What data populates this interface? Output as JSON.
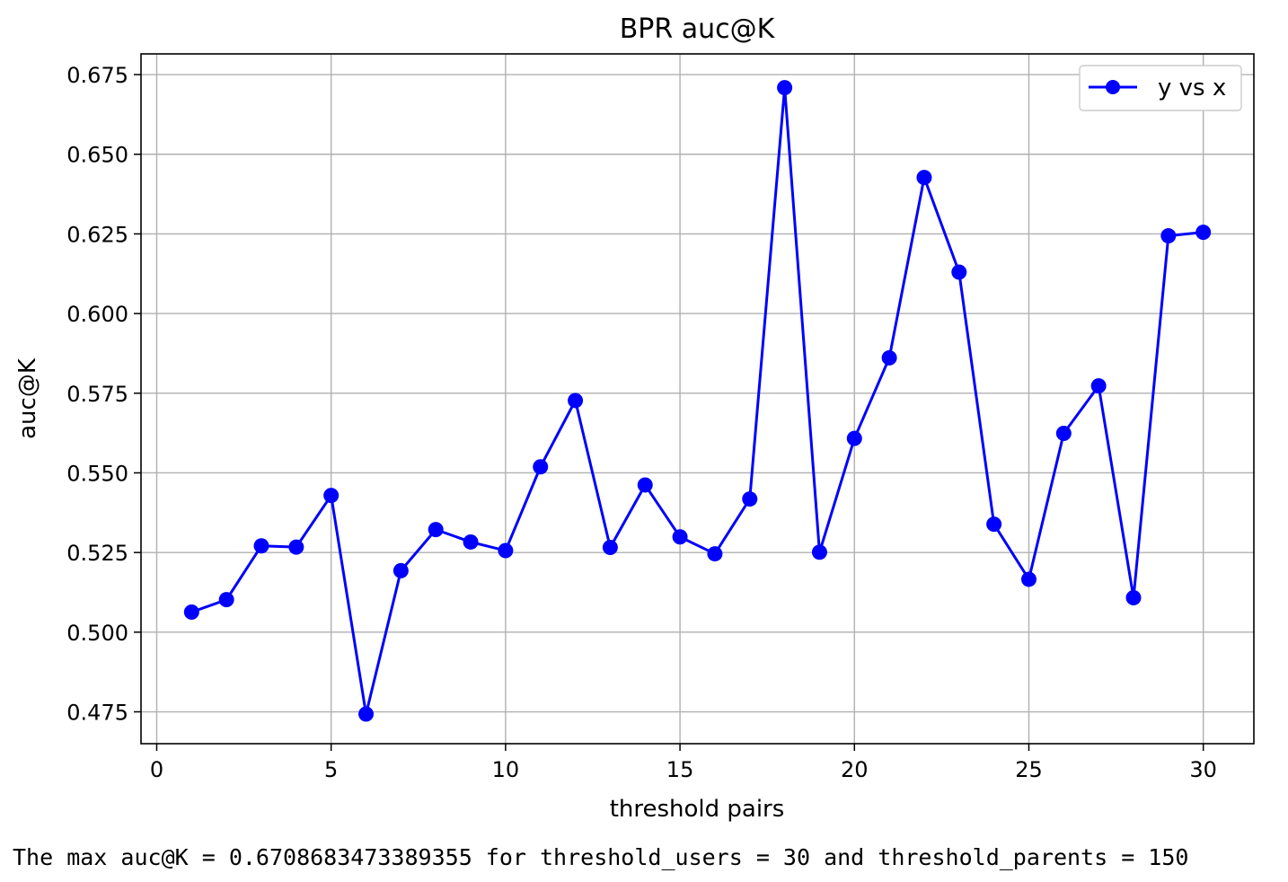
{
  "chart_data": {
    "type": "line",
    "title": "BPR auc@K",
    "xlabel": "threshold pairs",
    "ylabel": "auc@K",
    "xlim": [
      -0.45,
      31.45
    ],
    "ylim": [
      0.465,
      0.6815
    ],
    "xticks": [
      0,
      5,
      10,
      15,
      20,
      25,
      30
    ],
    "yticks": [
      0.475,
      0.5,
      0.525,
      0.55,
      0.575,
      0.6,
      0.625,
      0.65,
      0.675
    ],
    "xtick_labels": [
      "0",
      "5",
      "10",
      "15",
      "20",
      "25",
      "30"
    ],
    "ytick_labels": [
      "0.475",
      "0.500",
      "0.525",
      "0.550",
      "0.575",
      "0.600",
      "0.625",
      "0.650",
      "0.675"
    ],
    "grid": true,
    "legend_position": "top-right",
    "series": [
      {
        "name": "y vs x",
        "color": "#0000ff",
        "marker": "circle",
        "x": [
          1,
          2,
          3,
          4,
          5,
          6,
          7,
          8,
          9,
          10,
          11,
          12,
          13,
          14,
          15,
          16,
          17,
          18,
          19,
          20,
          21,
          22,
          23,
          24,
          25,
          26,
          27,
          28,
          29,
          30
        ],
        "y": [
          0.5063,
          0.5102,
          0.5271,
          0.5267,
          0.5429,
          0.4743,
          0.5193,
          0.5322,
          0.5283,
          0.5256,
          0.5519,
          0.5727,
          0.5266,
          0.5462,
          0.5299,
          0.5246,
          0.5418,
          0.6709,
          0.5251,
          0.5608,
          0.5861,
          0.6427,
          0.613,
          0.5339,
          0.5166,
          0.5624,
          0.5773,
          0.5108,
          0.6244,
          0.6255
        ]
      }
    ]
  },
  "output": {
    "text": "The max auc@K = 0.6708683473389355 for threshold_users = 30 and threshold_parents = 150"
  }
}
